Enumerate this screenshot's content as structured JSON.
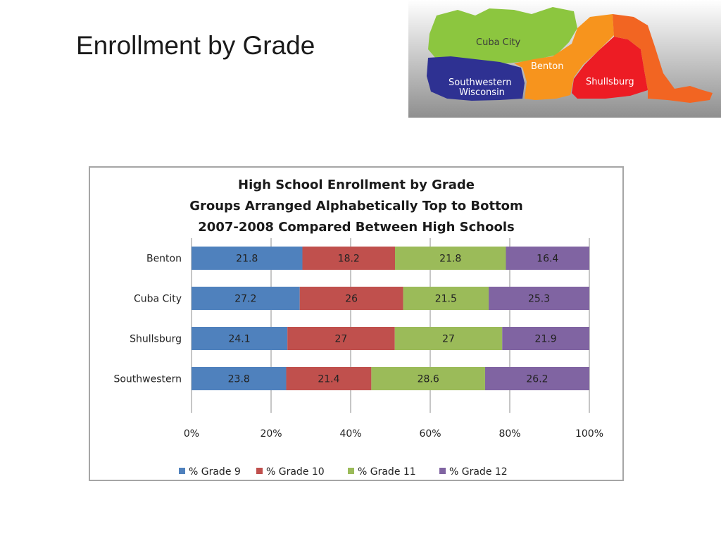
{
  "slide": {
    "title": "Enrollment by Grade"
  },
  "map": {
    "labels": {
      "cuba_city": "Cuba City",
      "benton": "Benton",
      "southwestern_line1": "Southwestern",
      "southwestern_line2": "Wisconsin",
      "shullsburg": "Shullsburg"
    },
    "colors": {
      "cuba_city": "#8cc63f",
      "benton": "#f7941d",
      "southwestern": "#2e3192",
      "shullsburg": "#ed1c24"
    }
  },
  "chart_data": {
    "type": "bar",
    "orientation": "horizontal",
    "stacked": "percent",
    "title_lines": [
      "High School Enrollment by Grade",
      "Groups Arranged Alphabetically Top to Bottom",
      "2007-2008 Compared Between High Schools"
    ],
    "categories": [
      "Benton",
      "Cuba City",
      "Shullsburg",
      "Southwestern"
    ],
    "series": [
      {
        "name": "% Grade 9",
        "color": "#4f81bd",
        "values": [
          21.8,
          27.2,
          24.1,
          23.8
        ]
      },
      {
        "name": "% Grade 10",
        "color": "#c0504d",
        "values": [
          18.2,
          26,
          27,
          21.4
        ]
      },
      {
        "name": "% Grade 11",
        "color": "#9bbb59",
        "values": [
          21.8,
          21.5,
          27,
          28.6
        ]
      },
      {
        "name": "% Grade 12",
        "color": "#8064a2",
        "values": [
          16.4,
          25.3,
          21.9,
          26.2
        ]
      }
    ],
    "x_ticks": [
      "0%",
      "20%",
      "40%",
      "60%",
      "80%",
      "100%"
    ],
    "xlim": [
      0,
      100
    ],
    "grid": true,
    "legend_position": "bottom"
  }
}
